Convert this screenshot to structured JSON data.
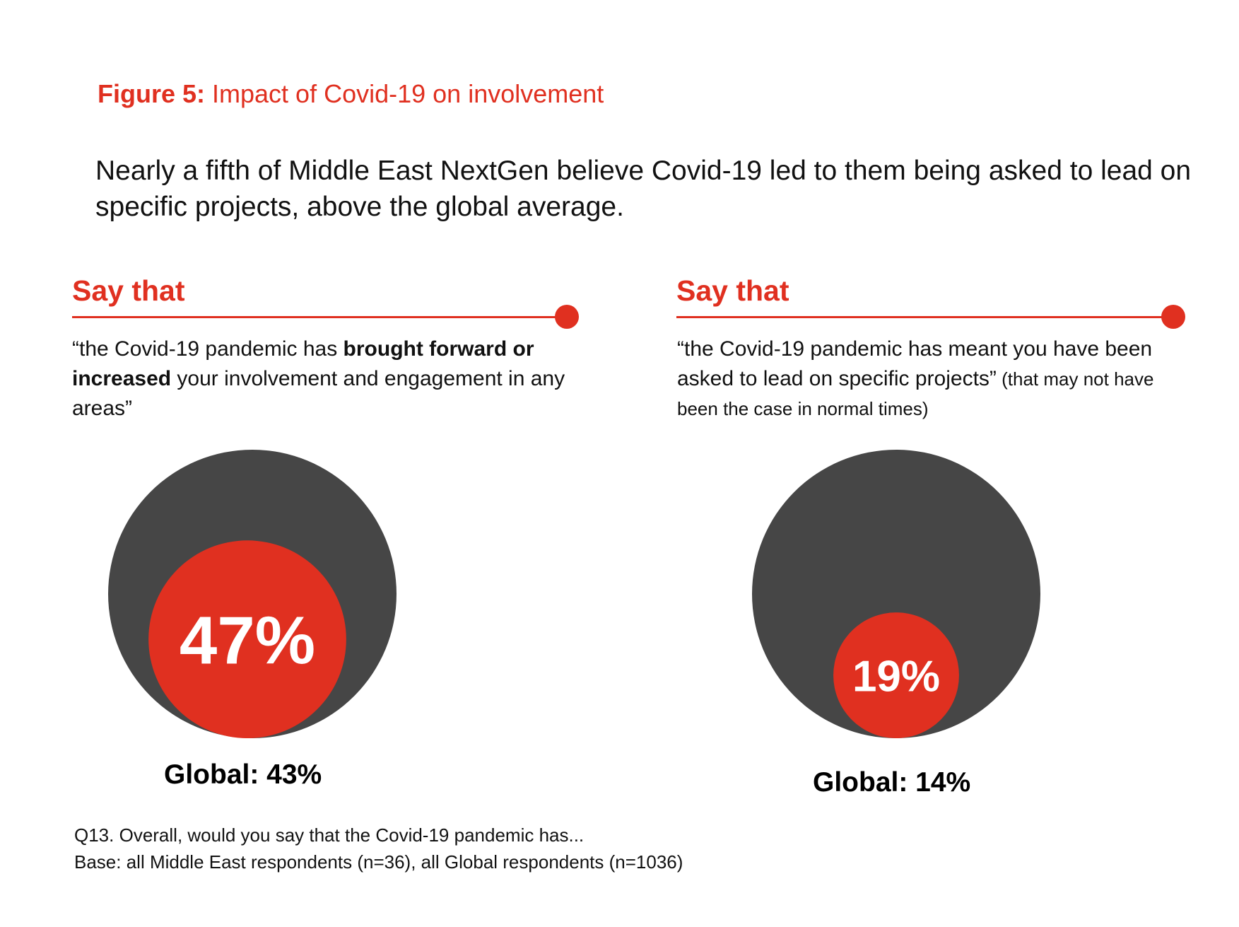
{
  "figure": {
    "label": "Figure 5:",
    "title": " Impact of Covid-19 on involvement"
  },
  "headline": "Nearly a fifth of Middle East NextGen believe Covid-19 led to them being asked to lead on specific projects, above the global average.",
  "colors": {
    "accent": "#e03020",
    "outer_circle": "#464646",
    "text_on_accent": "#ffffff"
  },
  "panels": [
    {
      "heading": "Say that",
      "quote_open": "“the Covid-19 pandemic has ",
      "quote_bold": "brought forward or increased",
      "quote_rest": " your involvement and engagement in any areas”",
      "quote_small": "",
      "value_label": "47%",
      "global_label": "Global: 43%"
    },
    {
      "heading": "Say that",
      "quote_open": "“the Covid-19 pandemic has meant you have been asked to lead on specific projects”",
      "quote_bold": "",
      "quote_rest": "",
      "quote_small": " (that may not have been the case in normal times)",
      "value_label": "19%",
      "global_label": "Global: 14%"
    }
  ],
  "chart_data": [
    {
      "type": "bubble",
      "outer_value": 100,
      "value": 47,
      "value_label": "47%",
      "global_value": 43,
      "global_label": "Global: 43%"
    },
    {
      "type": "bubble",
      "outer_value": 100,
      "value": 19,
      "value_label": "19%",
      "global_value": 14,
      "global_label": "Global: 14%"
    }
  ],
  "footnote": {
    "question": "Q13. Overall, would you say that the Covid-19 pandemic has...",
    "base": "Base: all Middle East respondents (n=36), all Global respondents (n=1036)"
  }
}
